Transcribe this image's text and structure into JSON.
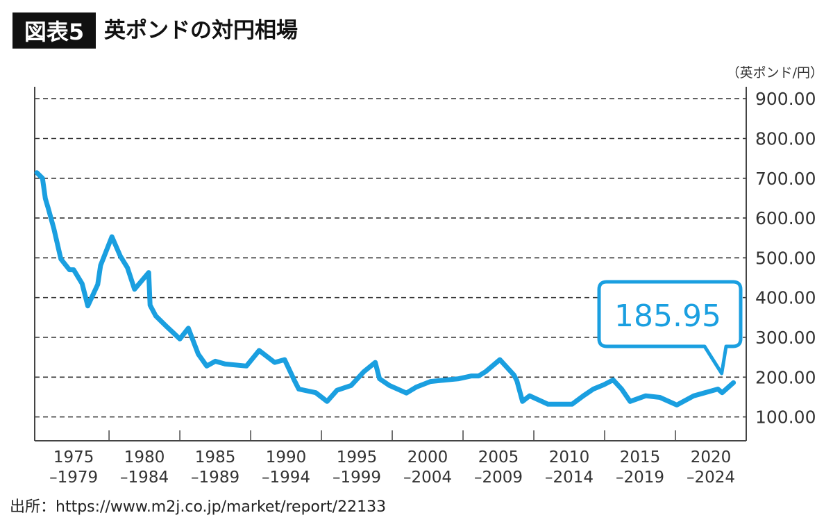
{
  "header": {
    "figure_label": "図表5",
    "title": "英ポンドの対円相場"
  },
  "unit_label": "（英ポンド/円）",
  "source": "出所：https://www.m2j.co.jp/market/report/22133",
  "chart_data": {
    "type": "line",
    "title": "英ポンドの対円相場",
    "ylabel": "（英ポンド/円）",
    "xlabel": "",
    "xlim": [
      1974.75,
      2025
    ],
    "ylim": [
      40,
      930
    ],
    "grid": true,
    "line_color": "#1a9fe0",
    "yticks": [
      100,
      200,
      300,
      400,
      500,
      600,
      700,
      800,
      900
    ],
    "ytick_labels": [
      "100.00",
      "200.00",
      "300.00",
      "400.00",
      "500.00",
      "600.00",
      "700.00",
      "800.00",
      "900.00"
    ],
    "xtick_groups": [
      {
        "start": "1975",
        "end": "–1979"
      },
      {
        "start": "1980",
        "end": "–1984"
      },
      {
        "start": "1985",
        "end": "–1989"
      },
      {
        "start": "1990",
        "end": "–1994"
      },
      {
        "start": "1995",
        "end": "–1999"
      },
      {
        "start": "2000",
        "end": "–2004"
      },
      {
        "start": "2005",
        "end": "–2009"
      },
      {
        "start": "2010",
        "end": "–2014"
      },
      {
        "start": "2015",
        "end": "–2019"
      },
      {
        "start": "2020",
        "end": "–2024"
      }
    ],
    "x": [
      1974.9,
      1975.3,
      1975.5,
      1975.7,
      1976.1,
      1976.6,
      1977.2,
      1977.5,
      1978.1,
      1978.5,
      1979.2,
      1979.4,
      1980.2,
      1980.8,
      1981.3,
      1981.8,
      1982.8,
      1982.9,
      1983.3,
      1984.1,
      1985.0,
      1985.6,
      1986.3,
      1986.9,
      1987.5,
      1988.2,
      1989.7,
      1990.6,
      1991.7,
      1992.4,
      1993.1,
      1993.4,
      1994.6,
      1995.4,
      1996.1,
      1997.1,
      1998.0,
      1998.8,
      1999.1,
      1999.8,
      2001.0,
      2001.7,
      2002.7,
      2004.7,
      2005.6,
      2006.1,
      2006.6,
      2007.6,
      2008.6,
      2008.8,
      2009.2,
      2009.7,
      2011.0,
      2012.7,
      2013.5,
      2014.2,
      2014.95,
      2015.6,
      2016.2,
      2016.8,
      2017.9,
      2018.9,
      2020.1,
      2021.3,
      2023.0,
      2023.3,
      2024.1
    ],
    "y": [
      714,
      700,
      649,
      625,
      574,
      497,
      470,
      470,
      435,
      379,
      433,
      481,
      553,
      504,
      475,
      421,
      463,
      381,
      354,
      326,
      296,
      323,
      258,
      228,
      240,
      233,
      228,
      267,
      237,
      244,
      191,
      170,
      161,
      139,
      167,
      179,
      214,
      237,
      196,
      179,
      160,
      175,
      189,
      196,
      203,
      203,
      214,
      244,
      205,
      191,
      139,
      153,
      132,
      132,
      153,
      170,
      181,
      193,
      170,
      139,
      153,
      149,
      130,
      153,
      170,
      161,
      186
    ],
    "annotation": {
      "text": "185.95",
      "target_x": 2024.1
    }
  }
}
